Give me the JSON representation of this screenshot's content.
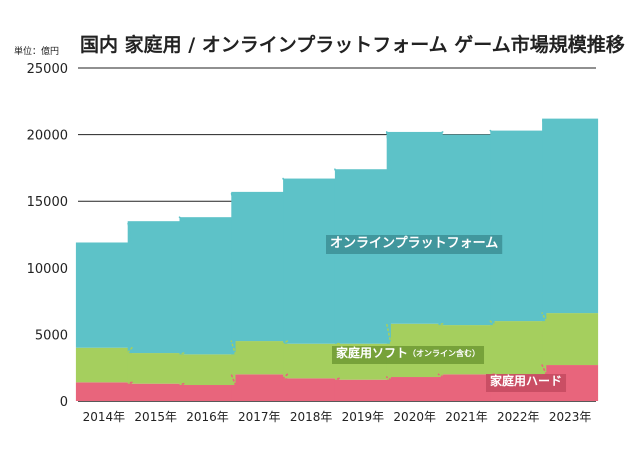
{
  "chart_data": {
    "type": "bar",
    "stacked": true,
    "title": "国内 家庭用 / オンラインプラットフォーム ゲーム市場規模推移",
    "unit_label": "単位：億円",
    "categories": [
      "2014年",
      "2015年",
      "2016年",
      "2017年",
      "2018年",
      "2019年",
      "2020年",
      "2021年",
      "2022年",
      "2023年"
    ],
    "ylim": [
      0,
      25000
    ],
    "yticks": [
      "0",
      "5000",
      "10000",
      "15000",
      "20000",
      "25000"
    ],
    "grid": true,
    "series": [
      {
        "name": "家庭用ハード",
        "color": "#e8657c",
        "values": [
          1400,
          1300,
          1200,
          2000,
          1700,
          1600,
          1800,
          2000,
          2000,
          2700
        ]
      },
      {
        "name": "家庭用ソフト",
        "note": "（オンライン含む）",
        "color": "#a5cf5e",
        "values": [
          2600,
          2300,
          2300,
          2500,
          2600,
          2700,
          4000,
          3700,
          4000,
          3900
        ]
      },
      {
        "name": "オンラインプラットフォーム",
        "color": "#5dc2c8",
        "values": [
          7900,
          9900,
          10300,
          11200,
          12400,
          13100,
          14400,
          14300,
          14300,
          14600
        ]
      }
    ]
  }
}
